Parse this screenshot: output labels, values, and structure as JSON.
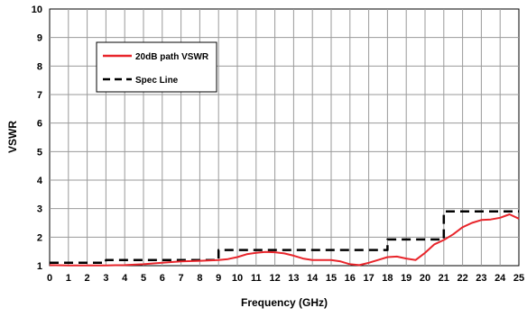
{
  "chart_data": {
    "type": "line",
    "xlabel": "Frequency (GHz)",
    "ylabel": "VSWR",
    "xlim": [
      0,
      25
    ],
    "ylim": [
      1,
      10
    ],
    "grid": true,
    "legend_position": "top-left",
    "x_ticks": [
      "0",
      "1",
      "2",
      "3",
      "4",
      "5",
      "6",
      "7",
      "8",
      "9",
      "10",
      "11",
      "12",
      "13",
      "14",
      "15",
      "16",
      "17",
      "18",
      "19",
      "20",
      "21",
      "22",
      "23",
      "24",
      "25"
    ],
    "y_ticks": [
      "1",
      "2",
      "3",
      "4",
      "5",
      "6",
      "7",
      "8",
      "9",
      "10"
    ],
    "series": [
      {
        "name": "20dB path VSWR",
        "color": "#e8252b",
        "style": "solid",
        "x": [
          0,
          1,
          2,
          3,
          4,
          5,
          6,
          7,
          8,
          9,
          9.5,
          10,
          10.5,
          11,
          11.5,
          12,
          12.5,
          13,
          13.5,
          14,
          14.5,
          15,
          15.5,
          16,
          16.5,
          17,
          17.5,
          18,
          18.5,
          19,
          19.5,
          20,
          20.5,
          21,
          21.5,
          22,
          22.5,
          23,
          23.5,
          24,
          24.5,
          25
        ],
        "y": [
          1.02,
          1.01,
          1.01,
          1.01,
          1.02,
          1.05,
          1.1,
          1.15,
          1.17,
          1.2,
          1.23,
          1.3,
          1.4,
          1.45,
          1.48,
          1.47,
          1.43,
          1.35,
          1.25,
          1.2,
          1.2,
          1.2,
          1.15,
          1.05,
          1.02,
          1.1,
          1.2,
          1.3,
          1.32,
          1.25,
          1.2,
          1.45,
          1.75,
          1.9,
          2.1,
          2.35,
          2.5,
          2.6,
          2.62,
          2.68,
          2.8,
          2.65
        ]
      },
      {
        "name": "Spec Line",
        "color": "#000000",
        "style": "dashed",
        "x": [
          0,
          3,
          3,
          9,
          9,
          18,
          18,
          21,
          21,
          25
        ],
        "y": [
          1.1,
          1.1,
          1.2,
          1.2,
          1.55,
          1.55,
          1.92,
          1.92,
          2.9,
          2.9
        ]
      }
    ]
  }
}
